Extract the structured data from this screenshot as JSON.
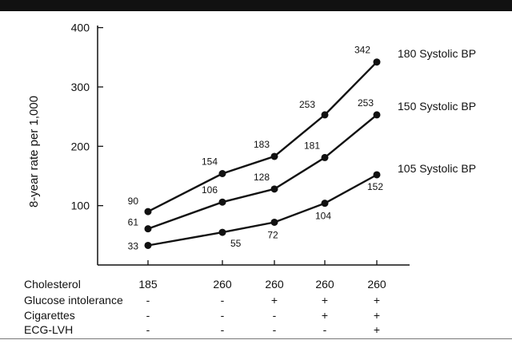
{
  "chart_data": {
    "type": "line",
    "ylabel": "8-year rate per 1,000",
    "xlabel": "",
    "ylim": [
      0,
      400
    ],
    "yticks": [
      100,
      200,
      300,
      400
    ],
    "categories": [
      "185",
      "260",
      "260",
      "260",
      "260"
    ],
    "series": [
      {
        "name": "180 Systolic BP",
        "values": [
          90,
          154,
          183,
          253,
          342
        ]
      },
      {
        "name": "150 Systolic BP",
        "values": [
          61,
          106,
          128,
          181,
          253
        ]
      },
      {
        "name": "105 Systolic BP",
        "values": [
          33,
          55,
          72,
          104,
          152
        ]
      }
    ],
    "grid": false,
    "legend": "series names at right end of each line"
  },
  "risk_factors": [
    {
      "label": "Cholesterol",
      "values": [
        "185",
        "260",
        "260",
        "260",
        "260"
      ]
    },
    {
      "label": "Glucose intolerance",
      "values": [
        "-",
        "-",
        "+",
        "+",
        "+"
      ]
    },
    {
      "label": "Cigarettes",
      "values": [
        "-",
        "-",
        "-",
        "+",
        "+"
      ]
    },
    {
      "label": "ECG-LVH",
      "values": [
        "-",
        "-",
        "-",
        "-",
        "+"
      ]
    }
  ]
}
